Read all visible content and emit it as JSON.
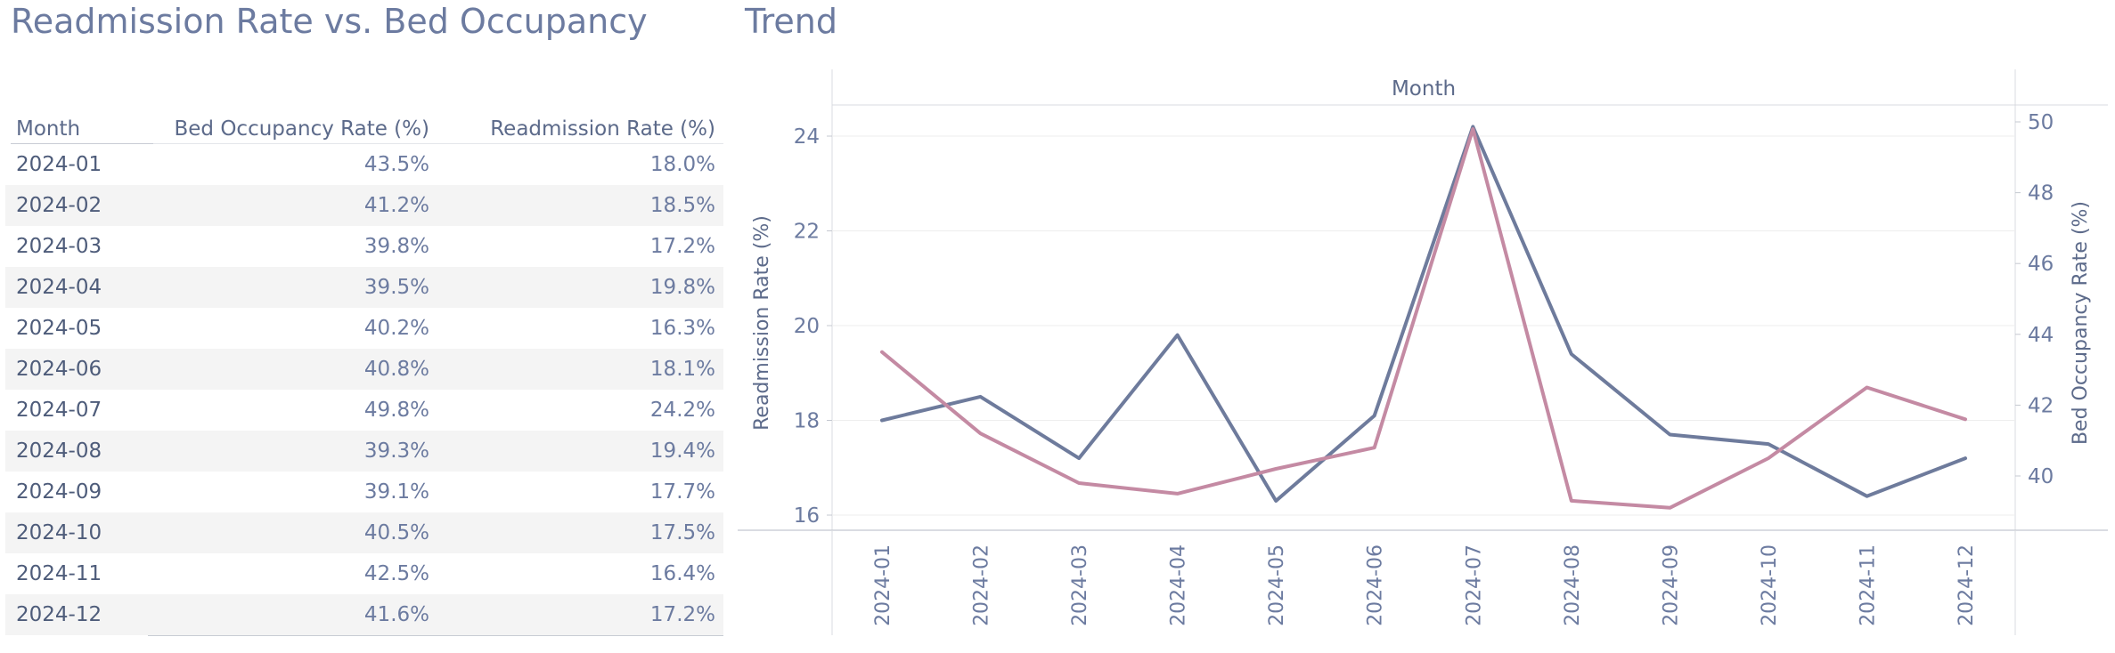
{
  "left_title": "Readmission Rate vs. Bed Occupancy",
  "right_title": "Trend",
  "table": {
    "columns": [
      "Month",
      "Bed Occupancy Rate (%)",
      "Readmission Rate (%)"
    ],
    "rows": [
      {
        "month": "2024-01",
        "bed": "43.5%",
        "readmission": "18.0%"
      },
      {
        "month": "2024-02",
        "bed": "41.2%",
        "readmission": "18.5%"
      },
      {
        "month": "2024-03",
        "bed": "39.8%",
        "readmission": "17.2%"
      },
      {
        "month": "2024-04",
        "bed": "39.5%",
        "readmission": "19.8%"
      },
      {
        "month": "2024-05",
        "bed": "40.2%",
        "readmission": "16.3%"
      },
      {
        "month": "2024-06",
        "bed": "40.8%",
        "readmission": "18.1%"
      },
      {
        "month": "2024-07",
        "bed": "49.8%",
        "readmission": "24.2%"
      },
      {
        "month": "2024-08",
        "bed": "39.3%",
        "readmission": "19.4%"
      },
      {
        "month": "2024-09",
        "bed": "39.1%",
        "readmission": "17.7%"
      },
      {
        "month": "2024-10",
        "bed": "40.5%",
        "readmission": "17.5%"
      },
      {
        "month": "2024-11",
        "bed": "42.5%",
        "readmission": "16.4%"
      },
      {
        "month": "2024-12",
        "bed": "41.6%",
        "readmission": "17.2%"
      }
    ]
  },
  "chart_data": {
    "type": "line",
    "title": "Trend",
    "xlabel": "Month",
    "categories": [
      "2024-01",
      "2024-02",
      "2024-03",
      "2024-04",
      "2024-05",
      "2024-06",
      "2024-07",
      "2024-08",
      "2024-09",
      "2024-10",
      "2024-11",
      "2024-12"
    ],
    "y_left": {
      "label": "Readmission Rate (%)",
      "ticks": [
        16,
        18,
        20,
        22,
        24
      ],
      "range": [
        15.8,
        24.5
      ]
    },
    "y_right": {
      "label": "Bed Occupancy Rate (%)",
      "ticks": [
        40,
        42,
        44,
        46,
        48,
        50
      ],
      "range": [
        38.6,
        50.6
      ]
    },
    "series": [
      {
        "key": "readmission",
        "axis": "left",
        "color": "#6e7b9c",
        "values": [
          18.0,
          18.5,
          17.2,
          19.8,
          16.3,
          18.1,
          24.2,
          19.4,
          17.7,
          17.5,
          16.4,
          17.2
        ]
      },
      {
        "key": "bed_occupancy",
        "axis": "right",
        "color": "#c48aa3",
        "values": [
          43.5,
          41.2,
          39.8,
          39.5,
          40.2,
          40.8,
          49.8,
          39.3,
          39.1,
          40.5,
          42.5,
          41.6
        ]
      }
    ],
    "grid": true,
    "legend": "none"
  }
}
